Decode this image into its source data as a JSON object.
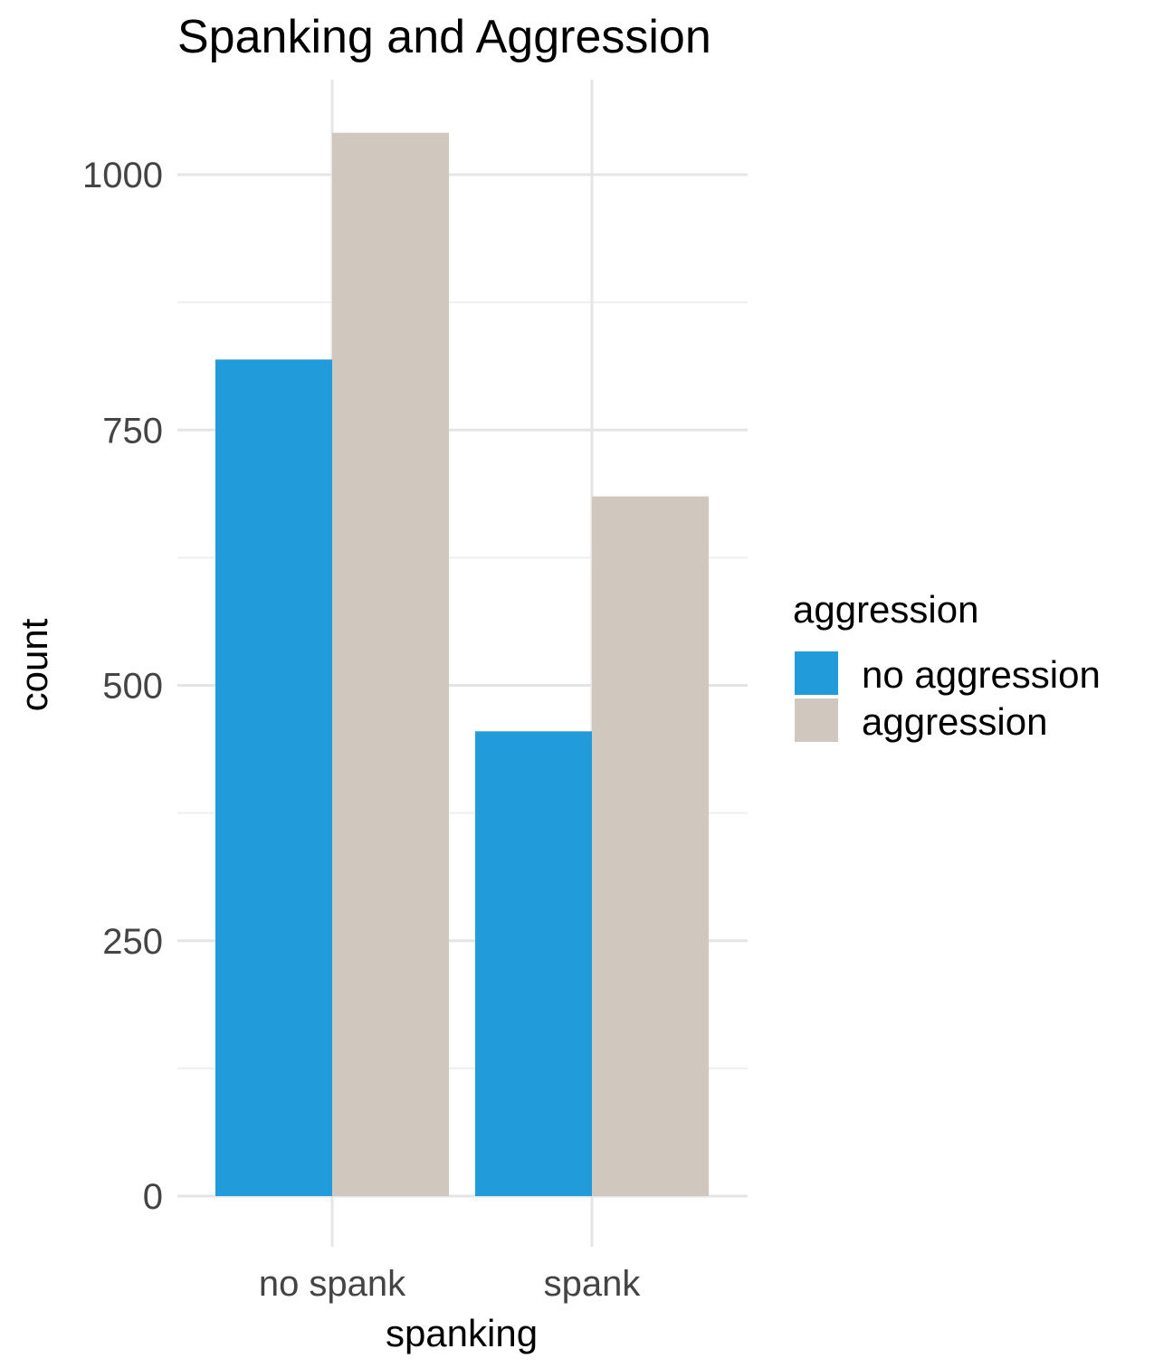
{
  "chart_data": {
    "type": "bar",
    "title": "Spanking and Aggression",
    "xlabel": "spanking",
    "ylabel": "count",
    "categories": [
      "no spank",
      "spank"
    ],
    "series": [
      {
        "name": "no aggression",
        "values": [
          819,
          455
        ]
      },
      {
        "name": "aggression",
        "values": [
          1041,
          685
        ]
      }
    ],
    "ylim": [
      0,
      1080
    ],
    "yticks": [
      0,
      250,
      500,
      750,
      1000
    ],
    "grid": true,
    "legend": {
      "title": "aggression",
      "placement": "right",
      "entries": [
        "no aggression",
        "aggression"
      ]
    },
    "colors": {
      "no aggression": "#219bd9",
      "aggression": "#d0c7bf"
    }
  }
}
